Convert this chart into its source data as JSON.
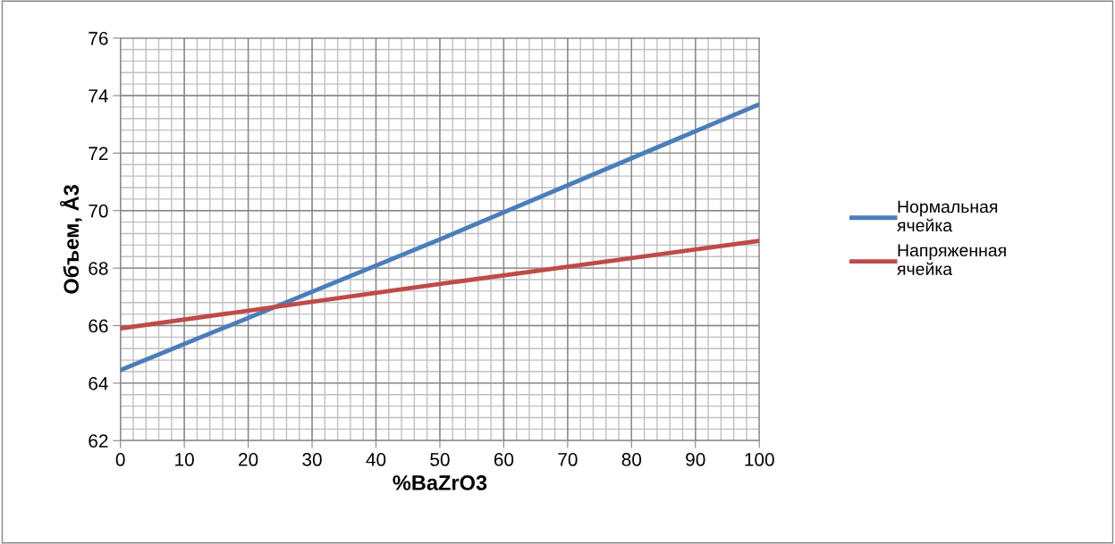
{
  "chart_data": {
    "type": "line",
    "xlabel": "%BaZrO3",
    "ylabel": "Объем, Å3",
    "x": [
      0,
      50,
      100
    ],
    "series": [
      {
        "name": "Нормальная ячейка",
        "color": "#4a7ebb",
        "values": [
          64.45,
          69.0,
          73.7
        ]
      },
      {
        "name": "Напряженная ячейка",
        "color": "#be4b48",
        "values": [
          65.9,
          67.45,
          68.95
        ]
      }
    ],
    "xlim": [
      0,
      100
    ],
    "xticks": [
      0,
      10,
      20,
      30,
      40,
      50,
      60,
      70,
      80,
      90,
      100
    ],
    "ylim": [
      62,
      76
    ],
    "yticks": [
      62,
      64,
      66,
      68,
      70,
      72,
      74,
      76
    ],
    "grid": true,
    "legend": "right",
    "marker": "none",
    "line_style": "solid"
  }
}
